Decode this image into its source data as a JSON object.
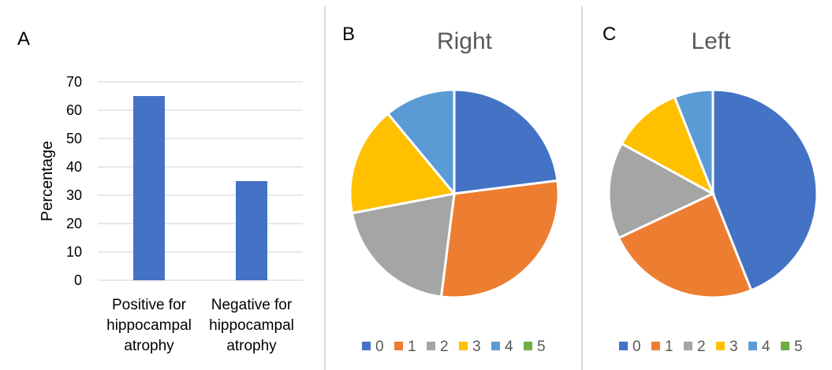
{
  "panels": [
    {
      "letter": "A",
      "chart_data": {
        "type": "bar",
        "title": "",
        "xlabel": "",
        "ylabel": "Percentage",
        "categories": [
          [
            "Positive for",
            "hippocampal",
            "atrophy"
          ],
          [
            "Negative for",
            "hippocampal",
            "atrophy"
          ]
        ],
        "values": [
          65,
          35
        ],
        "ylim": [
          0,
          70
        ],
        "yticks": [
          0,
          10,
          20,
          30,
          40,
          50,
          60,
          70
        ],
        "grid": true,
        "bar_color": "#4472C4"
      }
    },
    {
      "letter": "B",
      "chart_data": {
        "type": "pie",
        "title": "Right",
        "categories": [
          "0",
          "1",
          "2",
          "3",
          "4",
          "5"
        ],
        "values": [
          23,
          29,
          20,
          17,
          11,
          0
        ],
        "colors": [
          "#4472C4",
          "#ED7D31",
          "#A5A5A5",
          "#FFC000",
          "#5B9BD5",
          "#70AD47"
        ],
        "legend_position": "bottom"
      }
    },
    {
      "letter": "C",
      "chart_data": {
        "type": "pie",
        "title": "Left",
        "categories": [
          "0",
          "1",
          "2",
          "3",
          "4",
          "5"
        ],
        "values": [
          44,
          24,
          15,
          11,
          6,
          0
        ],
        "colors": [
          "#4472C4",
          "#ED7D31",
          "#A5A5A5",
          "#FFC000",
          "#5B9BD5",
          "#70AD47"
        ],
        "legend_position": "bottom"
      }
    }
  ]
}
